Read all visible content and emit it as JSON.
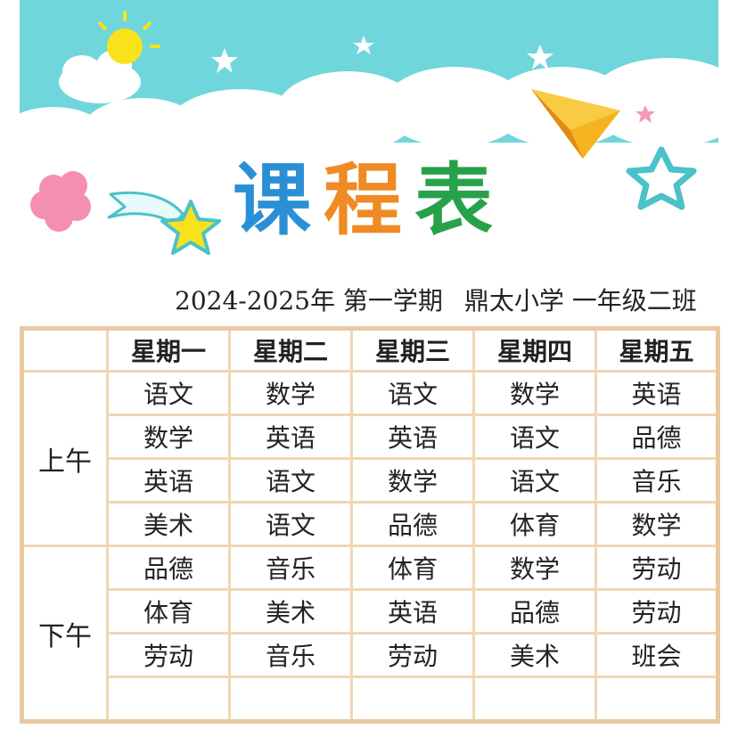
{
  "header": {
    "title_chars": [
      {
        "text": "课",
        "color": "#2b8fd6"
      },
      {
        "text": "程",
        "color": "#f08a24"
      },
      {
        "text": "表",
        "color": "#27a24a"
      }
    ],
    "subtitle_left": "2024-2025年 第一学期",
    "subtitle_right": "鼎太小学 一年级二班"
  },
  "colors": {
    "sky": "#6fd6dc",
    "cloud": "#ffffff",
    "table_border": "#f0d6b6",
    "star_yellow": "#f9e21b",
    "plane": "#f5b31f"
  },
  "icons": [
    "sun-icon",
    "cloud-icon",
    "star-icon",
    "paper-plane-icon",
    "flower-icon",
    "shooting-star-icon"
  ],
  "table": {
    "days": [
      "星期一",
      "星期二",
      "星期三",
      "星期四",
      "星期五"
    ],
    "morning_label": "上午",
    "afternoon_label": "下午",
    "morning": [
      [
        "语文",
        "数学",
        "语文",
        "数学",
        "英语"
      ],
      [
        "数学",
        "英语",
        "英语",
        "语文",
        "品德"
      ],
      [
        "英语",
        "语文",
        "数学",
        "语文",
        "音乐"
      ],
      [
        "美术",
        "语文",
        "品德",
        "体育",
        "数学"
      ]
    ],
    "afternoon": [
      [
        "品德",
        "音乐",
        "体育",
        "数学",
        "劳动"
      ],
      [
        "体育",
        "美术",
        "英语",
        "品德",
        "劳动"
      ],
      [
        "劳动",
        "音乐",
        "劳动",
        "美术",
        "班会"
      ],
      [
        "",
        "",
        "",
        "",
        ""
      ]
    ]
  }
}
